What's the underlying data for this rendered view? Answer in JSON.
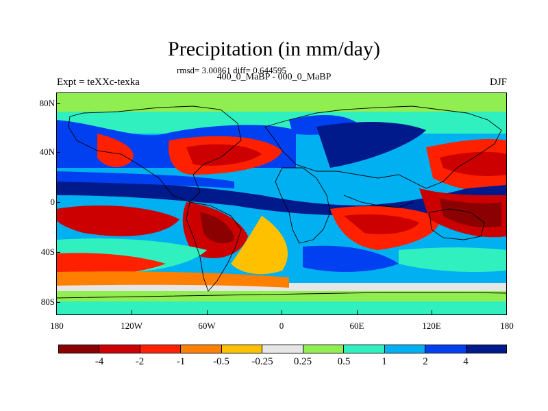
{
  "title": "Precipitation (in mm/day)",
  "stats_line": "rmsd= 3.00861 diff= 0.644595",
  "subtitle": "400_0_MaBP - 000_0_MaBP",
  "left_string": "Expt = teXXc-texka",
  "right_string": "DJF",
  "y_ticks": [
    "80N",
    "40N",
    "0",
    "40S",
    "80S"
  ],
  "x_ticks": [
    "180",
    "120W",
    "60W",
    "0",
    "60E",
    "120E",
    "180"
  ],
  "colorbar": {
    "labels": [
      "-4",
      "-2",
      "-1",
      "-0.5",
      "-0.25",
      "0.25",
      "0.5",
      "1",
      "2",
      "4"
    ],
    "colors": [
      "#8b0000",
      "#cc0000",
      "#ff2000",
      "#ff7f00",
      "#ffc000",
      "#e6e6e6",
      "#90ee50",
      "#30f0c0",
      "#00b0f0",
      "#0040f0",
      "#001a8c"
    ]
  }
}
